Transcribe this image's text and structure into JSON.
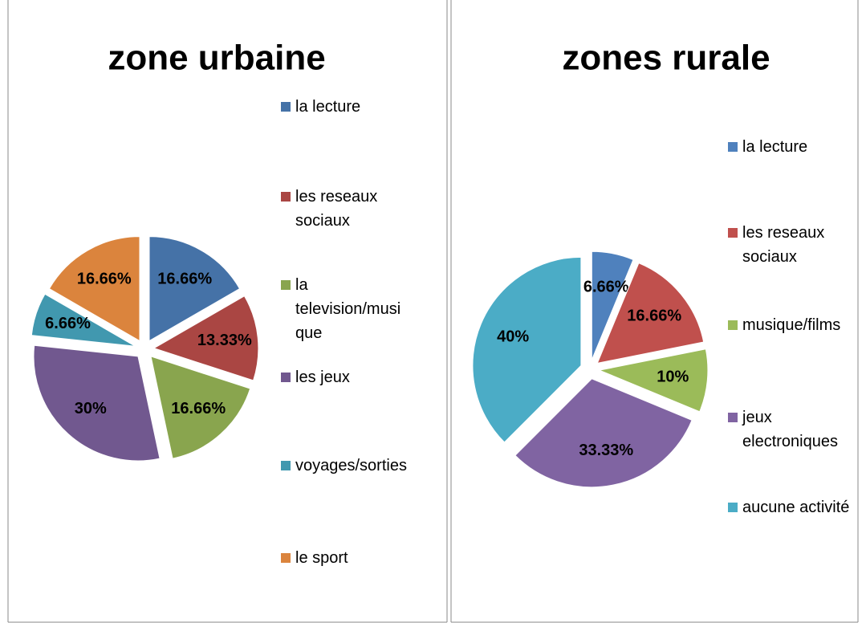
{
  "chart_data": [
    {
      "type": "pie",
      "title": "zone urbaine",
      "categories": [
        "la lecture",
        "les reseaux sociaux",
        "la television/musique",
        "les jeux",
        "voyages/sorties",
        "le sport"
      ],
      "values": [
        16.66,
        13.33,
        16.66,
        30,
        6.66,
        16.66
      ],
      "value_labels": [
        "16.66%",
        "13.33%",
        "16.66%",
        "30%",
        "6.66%",
        "16.66%"
      ],
      "colors": [
        "#4572A7",
        "#AA4643",
        "#89A54E",
        "#71588F",
        "#4198AF",
        "#DB843D"
      ],
      "legend": "right"
    },
    {
      "type": "pie",
      "title": "zones rurale",
      "categories": [
        "la lecture",
        "les reseaux sociaux",
        "musique/films",
        "jeux electroniques",
        "aucune activité"
      ],
      "values": [
        6.66,
        16.66,
        10,
        33.33,
        40
      ],
      "value_labels": [
        "6.66%",
        "16.66%",
        "10%",
        "33.33%",
        "40%"
      ],
      "colors": [
        "#4F81BD",
        "#C0504D",
        "#9BBB59",
        "#8064A2",
        "#4BACC6"
      ],
      "legend": "right"
    }
  ]
}
